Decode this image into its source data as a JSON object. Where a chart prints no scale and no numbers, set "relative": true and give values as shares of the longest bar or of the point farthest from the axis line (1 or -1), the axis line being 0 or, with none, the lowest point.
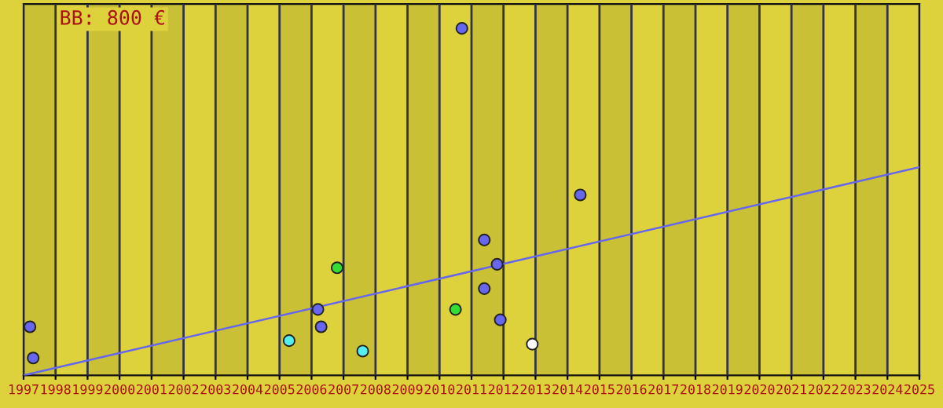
{
  "chart_data": {
    "type": "scatter",
    "relative": true,
    "annotations": [
      "BB: 800 €"
    ],
    "xlim": [
      1997,
      2025
    ],
    "xticks": [
      1997,
      1998,
      1999,
      2000,
      2001,
      2002,
      2003,
      2004,
      2005,
      2006,
      2007,
      2008,
      2009,
      2010,
      2011,
      2012,
      2013,
      2014,
      2015,
      2016,
      2017,
      2018,
      2019,
      2020,
      2021,
      2022,
      2023,
      2024,
      2025
    ],
    "tick_labels": "x",
    "grid": "x",
    "legend": false,
    "marker": "circle",
    "bands": [
      {
        "axis": "x",
        "from": 1997,
        "to": 1998,
        "color": "#c9c036"
      },
      {
        "axis": "x",
        "from": 1999,
        "to": 2000,
        "color": "#c9c036"
      },
      {
        "axis": "x",
        "from": 2001,
        "to": 2002,
        "color": "#c9c036"
      },
      {
        "axis": "x",
        "from": 2003,
        "to": 2004,
        "color": "#c9c036"
      },
      {
        "axis": "x",
        "from": 2005,
        "to": 2006,
        "color": "#c9c036"
      },
      {
        "axis": "x",
        "from": 2007,
        "to": 2008,
        "color": "#c9c036"
      },
      {
        "axis": "x",
        "from": 2009,
        "to": 2010,
        "color": "#c9c036"
      },
      {
        "axis": "x",
        "from": 2011,
        "to": 2012,
        "color": "#c9c036"
      },
      {
        "axis": "x",
        "from": 2013,
        "to": 2014,
        "color": "#c9c036"
      },
      {
        "axis": "x",
        "from": 2015,
        "to": 2016,
        "color": "#c9c036"
      },
      {
        "axis": "x",
        "from": 2017,
        "to": 2018,
        "color": "#c9c036"
      },
      {
        "axis": "x",
        "from": 2019,
        "to": 2020,
        "color": "#c9c036"
      },
      {
        "axis": "x",
        "from": 2021,
        "to": 2022,
        "color": "#c9c036"
      },
      {
        "axis": "x",
        "from": 2023,
        "to": 2024,
        "color": "#c9c036"
      }
    ],
    "series": [
      {
        "type": "line",
        "marker": "none",
        "color": "#6666ee",
        "x": [
          1997,
          2025
        ],
        "values": [
          0,
          0.6
        ]
      },
      {
        "color": "#6666ee",
        "x": [
          1997.2,
          1997.3,
          2006.2,
          2006.3,
          2010.7,
          2011.4,
          2011.8,
          2011.4,
          2011.9,
          2014.4
        ],
        "values": [
          0.14,
          0.05,
          0.19,
          0.14,
          1.0,
          0.39,
          0.32,
          0.25,
          0.16,
          0.52
        ]
      },
      {
        "color": "#33dd33",
        "x": [
          2006.8,
          2010.5
        ],
        "values": [
          0.31,
          0.19
        ]
      },
      {
        "color": "#55eeee",
        "x": [
          2005.3,
          2007.6
        ],
        "values": [
          0.1,
          0.07
        ]
      },
      {
        "color": "#ffffff",
        "x": [
          2012.9
        ],
        "values": [
          0.09
        ]
      }
    ]
  }
}
